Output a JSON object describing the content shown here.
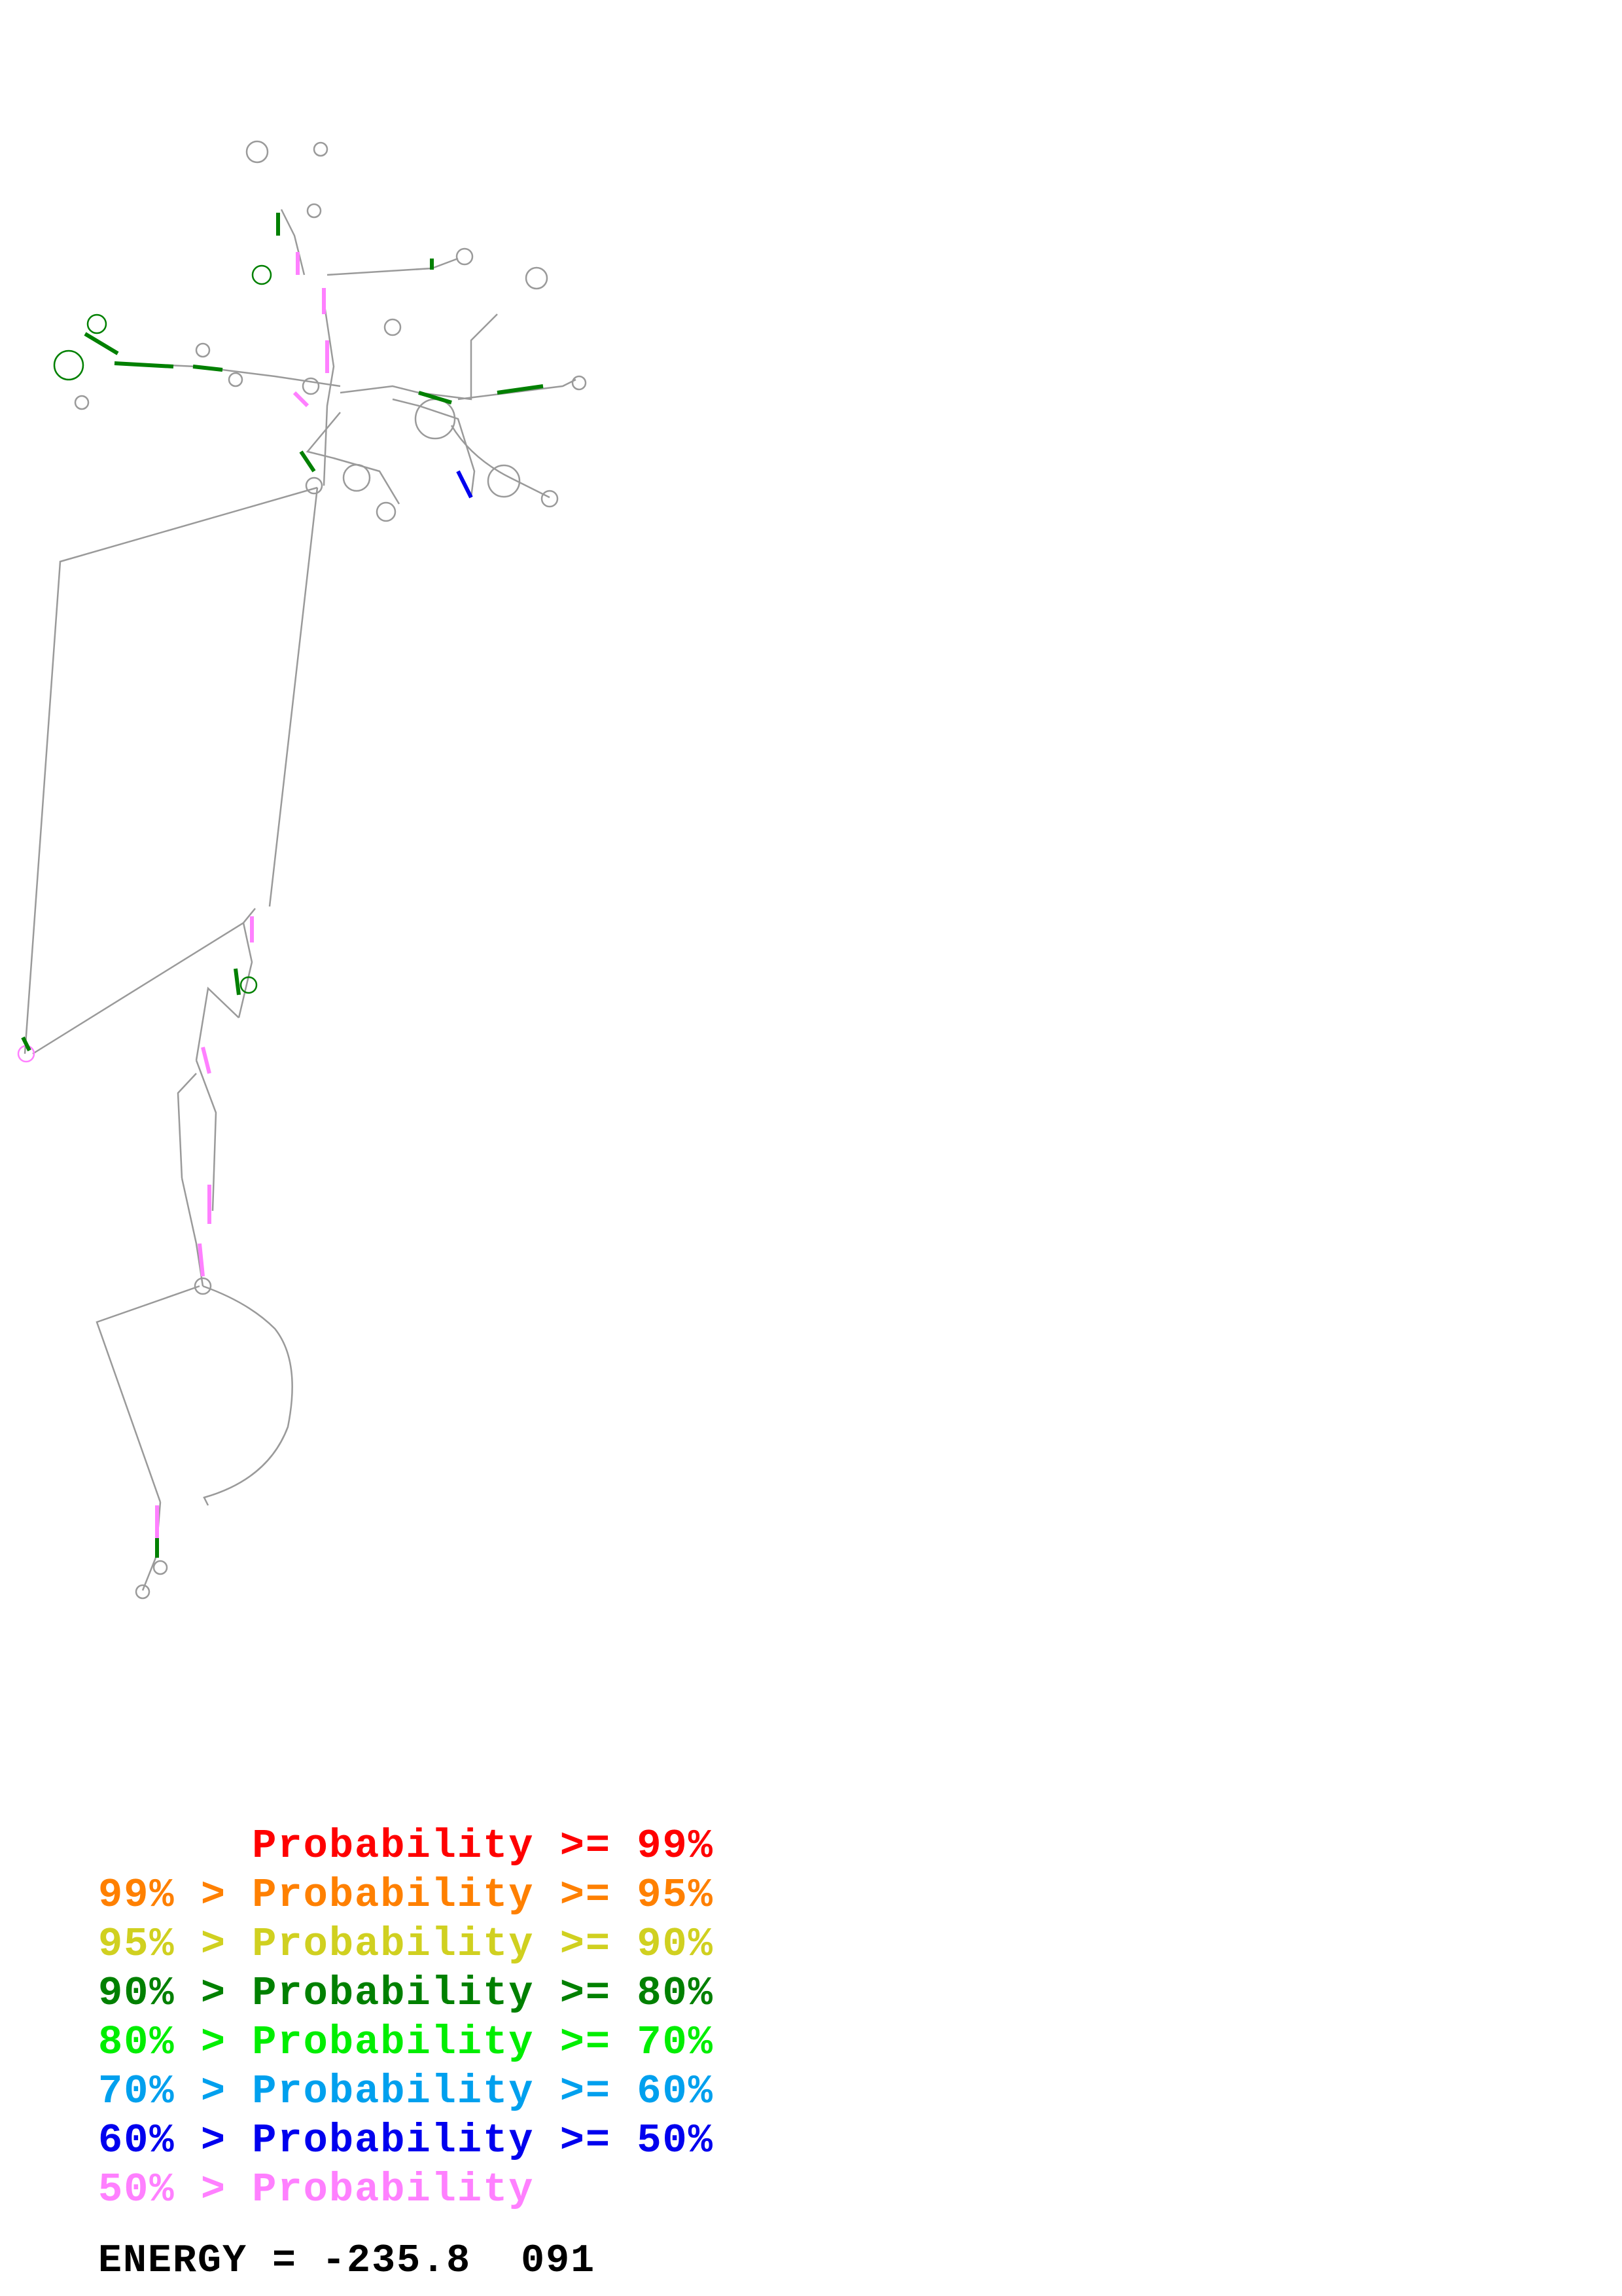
{
  "legend": [
    {
      "text": "      Probability >= 99%",
      "color": "#ff0000"
    },
    {
      "text": "99% > Probability >= 95%",
      "color": "#ff8000"
    },
    {
      "text": "95% > Probability >= 90%",
      "color": "#d0d020"
    },
    {
      "text": "90% > Probability >= 80%",
      "color": "#008000"
    },
    {
      "text": "80% > Probability >= 70%",
      "color": "#00ee00"
    },
    {
      "text": "70% > Probability >= 60%",
      "color": "#00a0ee"
    },
    {
      "text": "60% > Probability >= 50%",
      "color": "#0000ee"
    },
    {
      "text": "50% > Probability",
      "color": "#ff80ff"
    }
  ],
  "energy": {
    "text": "ENERGY = -235.8  091"
  },
  "colors": {
    "backbone": "#9a9a9a",
    "pair_high": "#ff0000",
    "pair_mid": "#008000",
    "pair_low": "#ff80ff",
    "pair_blue": "#0000ee"
  }
}
